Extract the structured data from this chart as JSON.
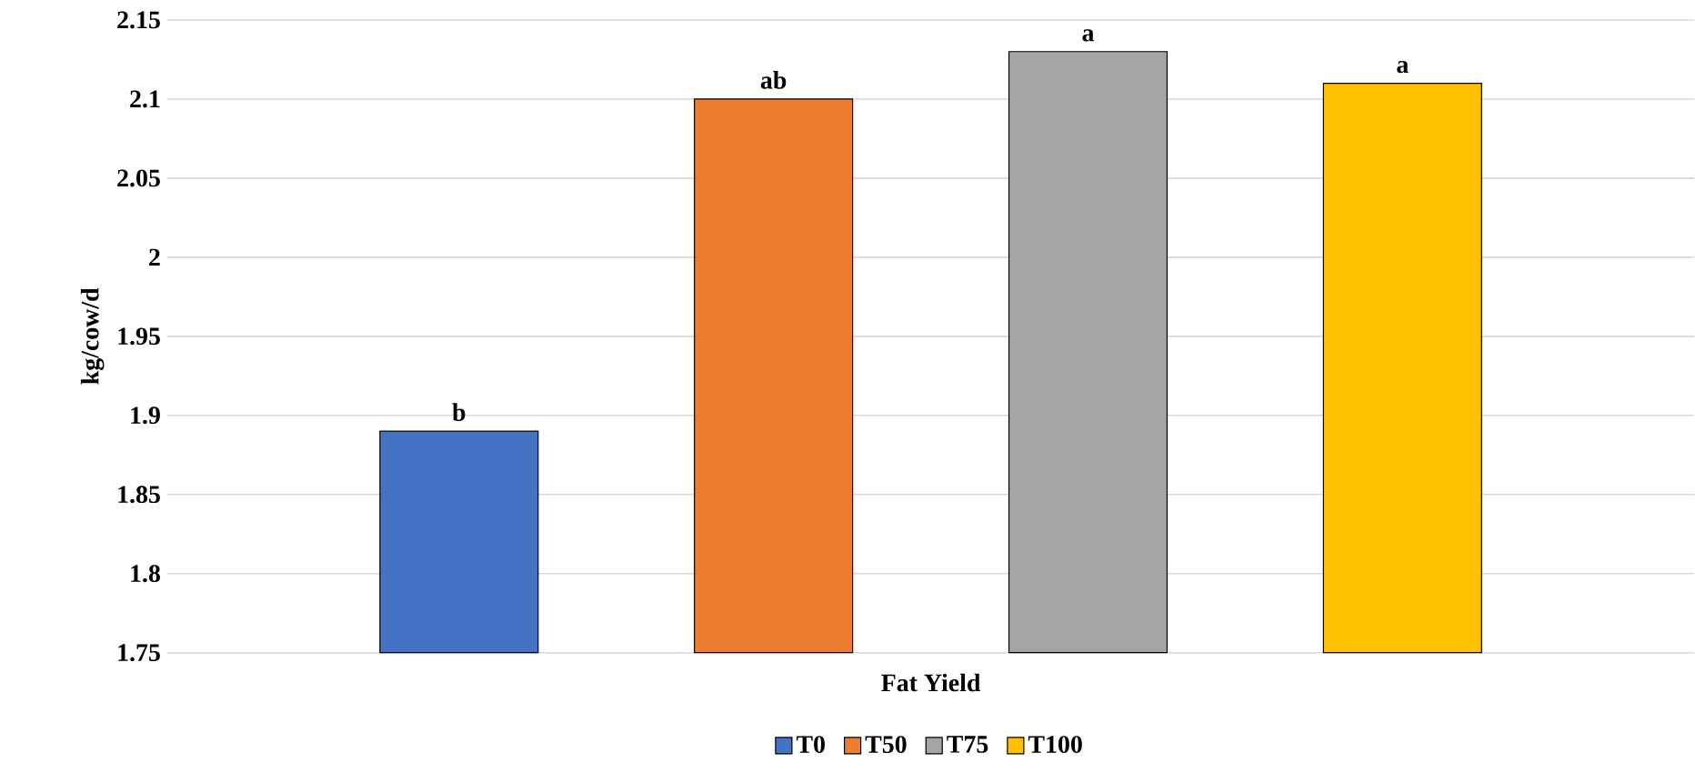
{
  "chart_data": {
    "type": "bar",
    "categories": [
      "Fat Yield"
    ],
    "ylabel": "kg/cow/d",
    "series": [
      {
        "name": "T0",
        "color": "#4472c4",
        "values": [
          1.89
        ],
        "value_labels": [
          "b"
        ]
      },
      {
        "name": "T50",
        "color": "#ed7d31",
        "values": [
          2.1
        ],
        "value_labels": [
          "ab"
        ]
      },
      {
        "name": "T75",
        "color": "#a5a5a5",
        "values": [
          2.13
        ],
        "value_labels": [
          "a"
        ]
      },
      {
        "name": "T100",
        "color": "#ffc000",
        "values": [
          2.11
        ],
        "value_labels": [
          "a"
        ]
      }
    ],
    "ylim": [
      1.75,
      2.15
    ],
    "yticks": [
      1.75,
      1.8,
      1.85,
      1.9,
      1.95,
      2,
      2.05,
      2.1,
      2.15
    ],
    "grid": "y",
    "legend": "bottom"
  }
}
